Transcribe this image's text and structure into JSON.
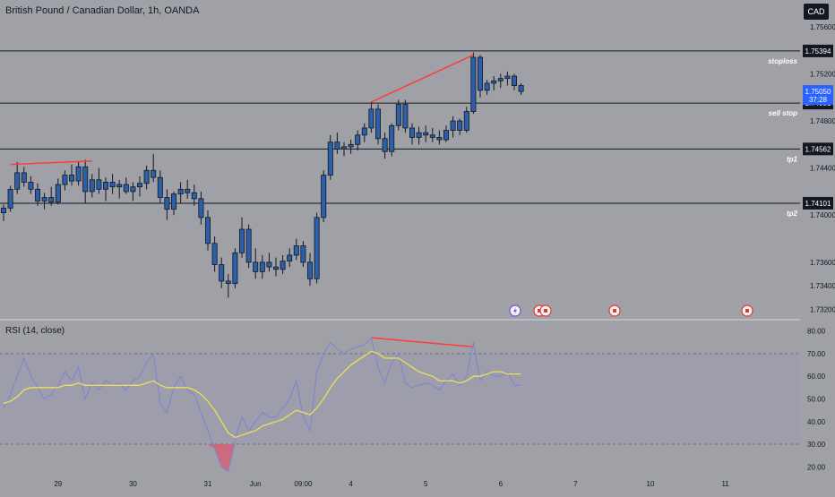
{
  "header": {
    "title": "British Pound / Canadian Dollar, 1h, OANDA",
    "currency_button": "CAD"
  },
  "colors": {
    "background": "#9fa1a6",
    "candle": "#2c5fa8",
    "candle_border": "#131722",
    "wick": "#131722",
    "divergence": "#ff3b3b",
    "rsi_line": "#7b83d6",
    "rsi_ma": "#e8e05a",
    "rsi_band_fill": "#9d9ab1",
    "oversold_fill": "#e0526e",
    "level_line": "#131722",
    "current_price_badge": "#2962ff"
  },
  "chart_data": [
    {
      "type": "candlestick",
      "title": "British Pound / Canadian Dollar, 1h, OANDA",
      "ylim": [
        1.7312,
        1.7572
      ],
      "y_ticks": [
        "1.75600",
        "1.75200",
        "1.74800",
        "1.74400",
        "1.74000",
        "1.73600",
        "1.73400",
        "1.73200"
      ],
      "y_tick_values": [
        1.756,
        1.752,
        1.748,
        1.744,
        1.74,
        1.736,
        1.734,
        1.732
      ],
      "x_ticks": [
        "29",
        "30",
        "31",
        "Jun",
        "09:00",
        "4",
        "5",
        "6",
        "7",
        "10",
        "11"
      ],
      "x_tick_index": [
        8,
        19,
        30,
        37,
        44,
        51,
        62,
        73,
        84,
        95,
        106
      ],
      "levels": [
        {
          "label": "stoploss",
          "price": "1.75394",
          "value": 1.75394
        },
        {
          "label": "sell stop",
          "price": "1.74951",
          "value": 1.74951
        },
        {
          "label": "tp1",
          "price": "1.74562",
          "value": 1.74562
        },
        {
          "label": "tp2",
          "price": "1.74101",
          "value": 1.74101
        }
      ],
      "current_price": {
        "price": "1.75050",
        "value": 1.7505,
        "countdown": "37:28"
      },
      "divergence_lines": [
        {
          "from": [
            1,
            1.7443
          ],
          "to": [
            13,
            1.7446
          ]
        },
        {
          "from": [
            54,
            1.7496
          ],
          "to": [
            69,
            1.7536
          ]
        }
      ],
      "candles": [
        [
          1.7402,
          1.7409,
          1.7395,
          1.7406
        ],
        [
          1.7406,
          1.7425,
          1.7403,
          1.7422
        ],
        [
          1.7422,
          1.7445,
          1.7418,
          1.7436
        ],
        [
          1.7436,
          1.7441,
          1.7424,
          1.7428
        ],
        [
          1.7428,
          1.7433,
          1.7418,
          1.7422
        ],
        [
          1.7422,
          1.7427,
          1.7408,
          1.7412
        ],
        [
          1.7412,
          1.7419,
          1.7405,
          1.7415
        ],
        [
          1.7415,
          1.7424,
          1.7408,
          1.7411
        ],
        [
          1.7411,
          1.7431,
          1.7409,
          1.7426
        ],
        [
          1.7426,
          1.7438,
          1.7421,
          1.7434
        ],
        [
          1.7434,
          1.7443,
          1.7425,
          1.7429
        ],
        [
          1.7429,
          1.7446,
          1.7425,
          1.7441
        ],
        [
          1.7441,
          1.7447,
          1.741,
          1.742
        ],
        [
          1.742,
          1.7435,
          1.7415,
          1.743
        ],
        [
          1.743,
          1.744,
          1.7418,
          1.7422
        ],
        [
          1.7422,
          1.7432,
          1.7412,
          1.7428
        ],
        [
          1.7428,
          1.7435,
          1.7418,
          1.7424
        ],
        [
          1.7424,
          1.743,
          1.7414,
          1.7426
        ],
        [
          1.7426,
          1.7432,
          1.7418,
          1.742
        ],
        [
          1.742,
          1.7428,
          1.7412,
          1.7424
        ],
        [
          1.7424,
          1.7433,
          1.7416,
          1.7427
        ],
        [
          1.7427,
          1.7442,
          1.7422,
          1.7438
        ],
        [
          1.7438,
          1.7452,
          1.7428,
          1.7432
        ],
        [
          1.7432,
          1.7438,
          1.741,
          1.7415
        ],
        [
          1.7415,
          1.7422,
          1.7396,
          1.7405
        ],
        [
          1.7405,
          1.742,
          1.74,
          1.7418
        ],
        [
          1.7418,
          1.7428,
          1.741,
          1.7422
        ],
        [
          1.7422,
          1.743,
          1.7414,
          1.7419
        ],
        [
          1.7419,
          1.7426,
          1.7408,
          1.7414
        ],
        [
          1.7414,
          1.742,
          1.7392,
          1.7398
        ],
        [
          1.7398,
          1.7404,
          1.737,
          1.7376
        ],
        [
          1.7376,
          1.7382,
          1.7352,
          1.7358
        ],
        [
          1.7358,
          1.7364,
          1.7338,
          1.7344
        ],
        [
          1.7344,
          1.735,
          1.733,
          1.7342
        ],
        [
          1.7342,
          1.7372,
          1.7338,
          1.7368
        ],
        [
          1.7368,
          1.7398,
          1.7364,
          1.7388
        ],
        [
          1.7388,
          1.7392,
          1.7355,
          1.736
        ],
        [
          1.736,
          1.7372,
          1.7346,
          1.7352
        ],
        [
          1.7352,
          1.7366,
          1.7346,
          1.736
        ],
        [
          1.736,
          1.7368,
          1.7352,
          1.7356
        ],
        [
          1.7356,
          1.7364,
          1.7348,
          1.7354
        ],
        [
          1.7354,
          1.7366,
          1.735,
          1.7361
        ],
        [
          1.7361,
          1.7372,
          1.7356,
          1.7366
        ],
        [
          1.7366,
          1.738,
          1.7362,
          1.7374
        ],
        [
          1.7374,
          1.7378,
          1.7356,
          1.736
        ],
        [
          1.736,
          1.7368,
          1.734,
          1.7346
        ],
        [
          1.7346,
          1.7402,
          1.7342,
          1.7398
        ],
        [
          1.7398,
          1.7438,
          1.7394,
          1.7434
        ],
        [
          1.7434,
          1.7468,
          1.743,
          1.7462
        ],
        [
          1.7462,
          1.747,
          1.7452,
          1.7456
        ],
        [
          1.7456,
          1.7462,
          1.745,
          1.7458
        ],
        [
          1.7458,
          1.7464,
          1.7452,
          1.746
        ],
        [
          1.746,
          1.7472,
          1.7455,
          1.7468
        ],
        [
          1.7468,
          1.7478,
          1.7462,
          1.7474
        ],
        [
          1.7474,
          1.7496,
          1.747,
          1.749
        ],
        [
          1.749,
          1.7494,
          1.746,
          1.7465
        ],
        [
          1.7465,
          1.747,
          1.7448,
          1.7454
        ],
        [
          1.7454,
          1.7478,
          1.745,
          1.7476
        ],
        [
          1.7476,
          1.7498,
          1.7472,
          1.7494
        ],
        [
          1.7494,
          1.7498,
          1.747,
          1.7474
        ],
        [
          1.7474,
          1.7478,
          1.746,
          1.7466
        ],
        [
          1.7466,
          1.7475,
          1.746,
          1.747
        ],
        [
          1.747,
          1.7476,
          1.7462,
          1.7468
        ],
        [
          1.7468,
          1.7474,
          1.7462,
          1.7466
        ],
        [
          1.7466,
          1.7472,
          1.746,
          1.7464
        ],
        [
          1.7464,
          1.7476,
          1.7462,
          1.7472
        ],
        [
          1.7472,
          1.7484,
          1.7466,
          1.748
        ],
        [
          1.748,
          1.7482,
          1.7468,
          1.7472
        ],
        [
          1.7472,
          1.7492,
          1.747,
          1.7488
        ],
        [
          1.7488,
          1.7538,
          1.7486,
          1.7534
        ],
        [
          1.7534,
          1.7536,
          1.75,
          1.7506
        ],
        [
          1.7506,
          1.7515,
          1.7502,
          1.7512
        ],
        [
          1.7512,
          1.7518,
          1.7506,
          1.7514
        ],
        [
          1.7514,
          1.752,
          1.7508,
          1.7516
        ],
        [
          1.7516,
          1.7522,
          1.751,
          1.7518
        ],
        [
          1.7518,
          1.752,
          1.7506,
          1.751
        ],
        [
          1.751,
          1.7512,
          1.7502,
          1.7505
        ]
      ]
    },
    {
      "type": "line",
      "title": "RSI (14, close)",
      "ylim": [
        15,
        83
      ],
      "y_ticks": [
        "80.00",
        "70.00",
        "60.00",
        "50.00",
        "40.00",
        "30.00",
        "20.00"
      ],
      "y_tick_values": [
        80,
        70,
        60,
        50,
        40,
        30,
        20
      ],
      "band": [
        30,
        70
      ],
      "divergence_line": {
        "from": [
          54,
          77
        ],
        "to": [
          69,
          73
        ]
      },
      "series": [
        {
          "values": [
            46,
            52,
            60,
            68,
            60,
            55,
            50,
            52,
            56,
            62,
            58,
            64,
            50,
            57,
            54,
            58,
            56,
            57,
            54,
            58,
            60,
            66,
            70,
            48,
            44,
            55,
            60,
            54,
            52,
            44,
            36,
            28,
            20,
            18,
            32,
            42,
            36,
            40,
            44,
            42,
            42,
            46,
            50,
            58,
            42,
            36,
            62,
            70,
            75,
            72,
            70,
            72,
            73,
            74,
            77,
            64,
            57,
            66,
            70,
            57,
            55,
            56,
            57,
            56,
            54,
            58,
            61,
            56,
            60,
            75,
            58,
            62,
            60,
            60,
            62,
            56,
            56
          ]
        },
        {
          "values": [
            48,
            49,
            51,
            54,
            55,
            55,
            55,
            55,
            55,
            56,
            56,
            57,
            56,
            56,
            56,
            56,
            56,
            56,
            56,
            56,
            56,
            57,
            58,
            56,
            55,
            55,
            55,
            55,
            54,
            52,
            49,
            45,
            40,
            35,
            33,
            34,
            35,
            36,
            38,
            39,
            40,
            41,
            43,
            45,
            44,
            43,
            46,
            50,
            55,
            59,
            62,
            65,
            67,
            69,
            71,
            70,
            68,
            68,
            68,
            66,
            64,
            62,
            61,
            60,
            58,
            58,
            58,
            57,
            58,
            60,
            60,
            61,
            62,
            62,
            61,
            61,
            61
          ]
        }
      ]
    }
  ],
  "event_icons": [
    "lightning-event-icon",
    "ca-flag-event-icon",
    "ca-flag-event-icon",
    "ca-flag-event-icon",
    "us-flag-event-icon"
  ]
}
